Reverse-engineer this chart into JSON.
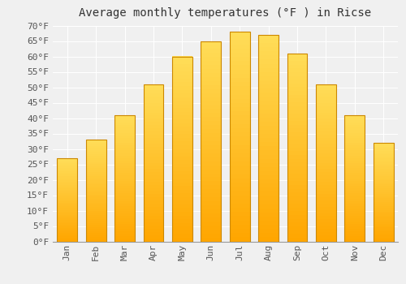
{
  "title": "Average monthly temperatures (°F ) in Ricse",
  "months": [
    "Jan",
    "Feb",
    "Mar",
    "Apr",
    "May",
    "Jun",
    "Jul",
    "Aug",
    "Sep",
    "Oct",
    "Nov",
    "Dec"
  ],
  "values": [
    27,
    33,
    41,
    51,
    60,
    65,
    68,
    67,
    61,
    51,
    41,
    32
  ],
  "bar_color_top": "#FFD966",
  "bar_color_bottom": "#FFA500",
  "bar_edge_color": "#CC8800",
  "ylim": [
    0,
    70
  ],
  "yticks": [
    0,
    5,
    10,
    15,
    20,
    25,
    30,
    35,
    40,
    45,
    50,
    55,
    60,
    65,
    70
  ],
  "background_color": "#f0f0f0",
  "grid_color": "#ffffff",
  "title_fontsize": 10,
  "tick_fontsize": 8,
  "font_family": "monospace"
}
